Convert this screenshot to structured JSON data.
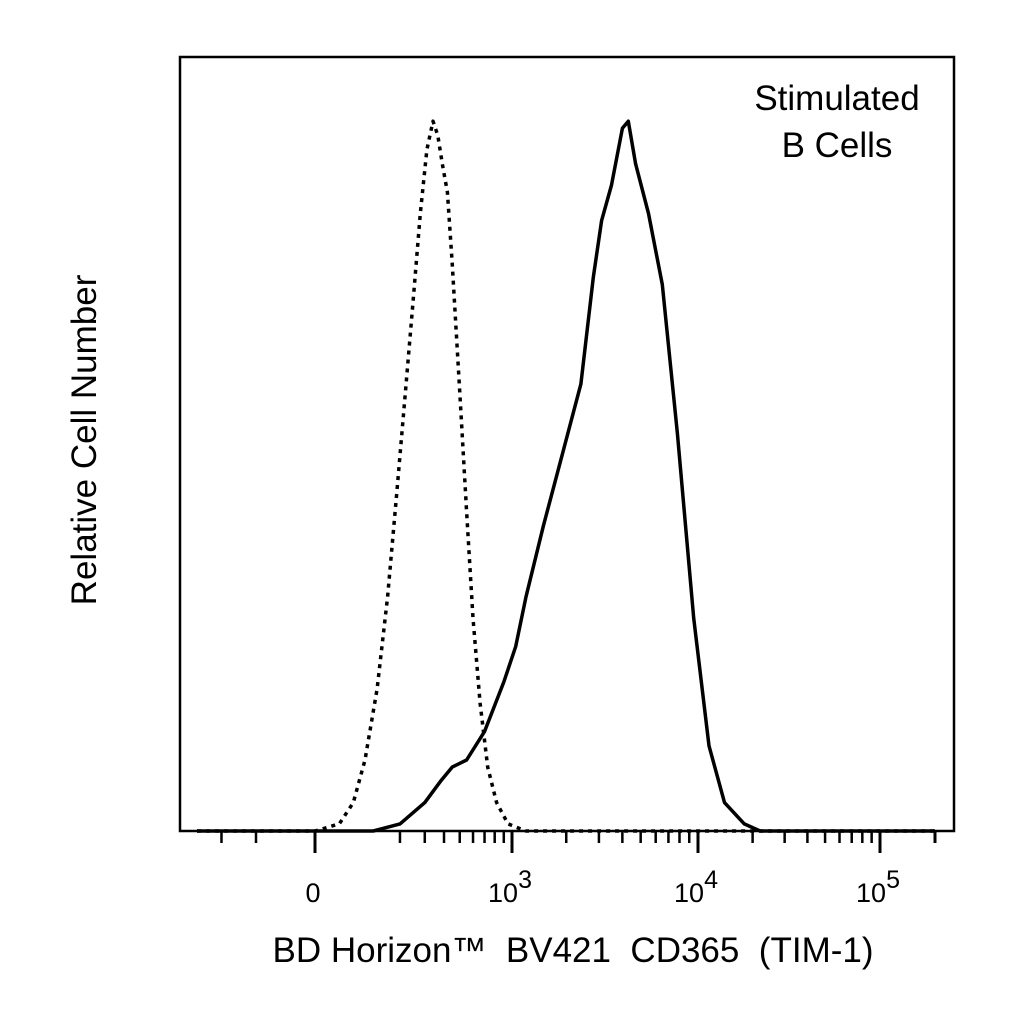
{
  "chart_data": {
    "type": "line",
    "title": "",
    "annotation": [
      "Stimulated",
      "B Cells"
    ],
    "xlabel": "BD Horizon™  BV421  CD365  (TIM-1)",
    "ylabel": "Relative Cell Number",
    "x_scale": "biexponential",
    "xlim": [
      -300,
      200000
    ],
    "ylim": [
      0,
      1
    ],
    "grid": false,
    "x_ticks": [
      {
        "value": 0,
        "label": "0"
      },
      {
        "value": 1000,
        "label": "10",
        "exp": "3"
      },
      {
        "value": 10000,
        "label": "10",
        "exp": "4"
      },
      {
        "value": 100000,
        "label": "10",
        "exp": "5"
      }
    ],
    "series": [
      {
        "style": "dotted",
        "color": "#000000",
        "points": [
          [
            -300,
            0.0
          ],
          [
            -100,
            0.0
          ],
          [
            0,
            0.0
          ],
          [
            40,
            0.01
          ],
          [
            70,
            0.04
          ],
          [
            100,
            0.1
          ],
          [
            130,
            0.2
          ],
          [
            160,
            0.33
          ],
          [
            190,
            0.48
          ],
          [
            220,
            0.62
          ],
          [
            250,
            0.75
          ],
          [
            280,
            0.87
          ],
          [
            310,
            0.96
          ],
          [
            340,
            1.0
          ],
          [
            365,
            0.98
          ],
          [
            390,
            0.94
          ],
          [
            420,
            0.9
          ],
          [
            450,
            0.8
          ],
          [
            500,
            0.62
          ],
          [
            550,
            0.45
          ],
          [
            600,
            0.3
          ],
          [
            660,
            0.18
          ],
          [
            730,
            0.09
          ],
          [
            820,
            0.04
          ],
          [
            950,
            0.01
          ],
          [
            1200,
            0.0
          ],
          [
            200000,
            0.0
          ]
        ]
      },
      {
        "style": "solid",
        "color": "#000000",
        "points": [
          [
            -300,
            0.0
          ],
          [
            120,
            0.0
          ],
          [
            200,
            0.01
          ],
          [
            300,
            0.04
          ],
          [
            380,
            0.07
          ],
          [
            450,
            0.09
          ],
          [
            550,
            0.1
          ],
          [
            700,
            0.14
          ],
          [
            900,
            0.21
          ],
          [
            1050,
            0.26
          ],
          [
            1200,
            0.33
          ],
          [
            1500,
            0.43
          ],
          [
            1900,
            0.53
          ],
          [
            2400,
            0.63
          ],
          [
            2800,
            0.78
          ],
          [
            3100,
            0.86
          ],
          [
            3500,
            0.91
          ],
          [
            4000,
            0.99
          ],
          [
            4300,
            1.0
          ],
          [
            4700,
            0.94
          ],
          [
            5500,
            0.87
          ],
          [
            6500,
            0.77
          ],
          [
            7800,
            0.56
          ],
          [
            9500,
            0.3
          ],
          [
            11500,
            0.12
          ],
          [
            14000,
            0.04
          ],
          [
            18000,
            0.01
          ],
          [
            22000,
            0.0
          ],
          [
            200000,
            0.0
          ]
        ]
      }
    ]
  }
}
